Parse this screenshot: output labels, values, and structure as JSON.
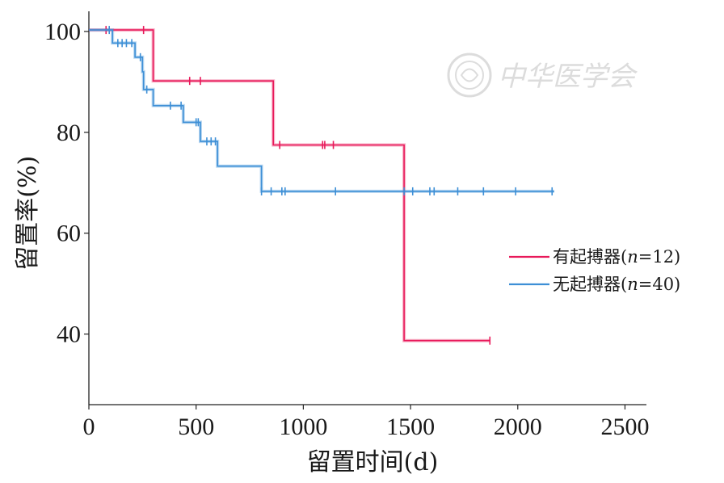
{
  "chart_data": {
    "type": "line",
    "subtype": "kaplan-meier step",
    "title": "",
    "xlabel": "留置时间(d)",
    "ylabel": "留置率(%)",
    "xlim": [
      0,
      2600
    ],
    "ylim": [
      26,
      104
    ],
    "x_ticks": [
      0,
      500,
      1000,
      1500,
      2000,
      2500
    ],
    "x_tick_labels": [
      "0",
      "500",
      "1000",
      "1500",
      "2000",
      "2500"
    ],
    "y_ticks": [
      40,
      60,
      80,
      100
    ],
    "y_tick_labels": [
      "40",
      "60",
      "80",
      "100"
    ],
    "grid": false,
    "legend_position": "right",
    "series": [
      {
        "name": "有起搏器",
        "legend_n": "n=12",
        "color": "#e8195a",
        "steps": [
          [
            0,
            100.3
          ],
          [
            300,
            100.3
          ],
          [
            300,
            90.2
          ],
          [
            860,
            90.2
          ],
          [
            860,
            77.5
          ],
          [
            1470,
            77.5
          ],
          [
            1470,
            38.7
          ],
          [
            1870,
            38.7
          ]
        ],
        "censored": [
          [
            80,
            100.3
          ],
          [
            255,
            100.3
          ],
          [
            470,
            90.2
          ],
          [
            520,
            90.2
          ],
          [
            890,
            77.5
          ],
          [
            1090,
            77.5
          ],
          [
            1100,
            77.5
          ],
          [
            1140,
            77.5
          ],
          [
            1870,
            38.7
          ]
        ]
      },
      {
        "name": "无起搏器",
        "legend_n": "n=40",
        "color": "#3d8fd6",
        "steps": [
          [
            0,
            100.3
          ],
          [
            110,
            100.3
          ],
          [
            110,
            97.7
          ],
          [
            215,
            97.7
          ],
          [
            215,
            94.9
          ],
          [
            250,
            94.9
          ],
          [
            250,
            92.0
          ],
          [
            255,
            92.0
          ],
          [
            255,
            88.5
          ],
          [
            300,
            88.5
          ],
          [
            300,
            85.3
          ],
          [
            440,
            85.3
          ],
          [
            440,
            82.0
          ],
          [
            520,
            82.0
          ],
          [
            520,
            78.2
          ],
          [
            600,
            78.2
          ],
          [
            600,
            73.3
          ],
          [
            805,
            73.3
          ],
          [
            805,
            68.3
          ],
          [
            2170,
            68.3
          ]
        ],
        "censored": [
          [
            95,
            100.3
          ],
          [
            135,
            97.7
          ],
          [
            155,
            97.7
          ],
          [
            175,
            97.7
          ],
          [
            200,
            97.7
          ],
          [
            240,
            94.9
          ],
          [
            270,
            88.5
          ],
          [
            380,
            85.3
          ],
          [
            430,
            85.3
          ],
          [
            500,
            82.0
          ],
          [
            510,
            82.0
          ],
          [
            550,
            78.2
          ],
          [
            570,
            78.2
          ],
          [
            590,
            78.2
          ],
          [
            805,
            68.3
          ],
          [
            850,
            68.3
          ],
          [
            900,
            68.3
          ],
          [
            915,
            68.3
          ],
          [
            1150,
            68.3
          ],
          [
            1470,
            68.3
          ],
          [
            1510,
            68.3
          ],
          [
            1590,
            68.3
          ],
          [
            1610,
            68.3
          ],
          [
            1720,
            68.3
          ],
          [
            1840,
            68.3
          ],
          [
            1990,
            68.3
          ],
          [
            2160,
            68.3
          ]
        ]
      }
    ]
  },
  "watermark": {
    "text": "中华医学会"
  }
}
